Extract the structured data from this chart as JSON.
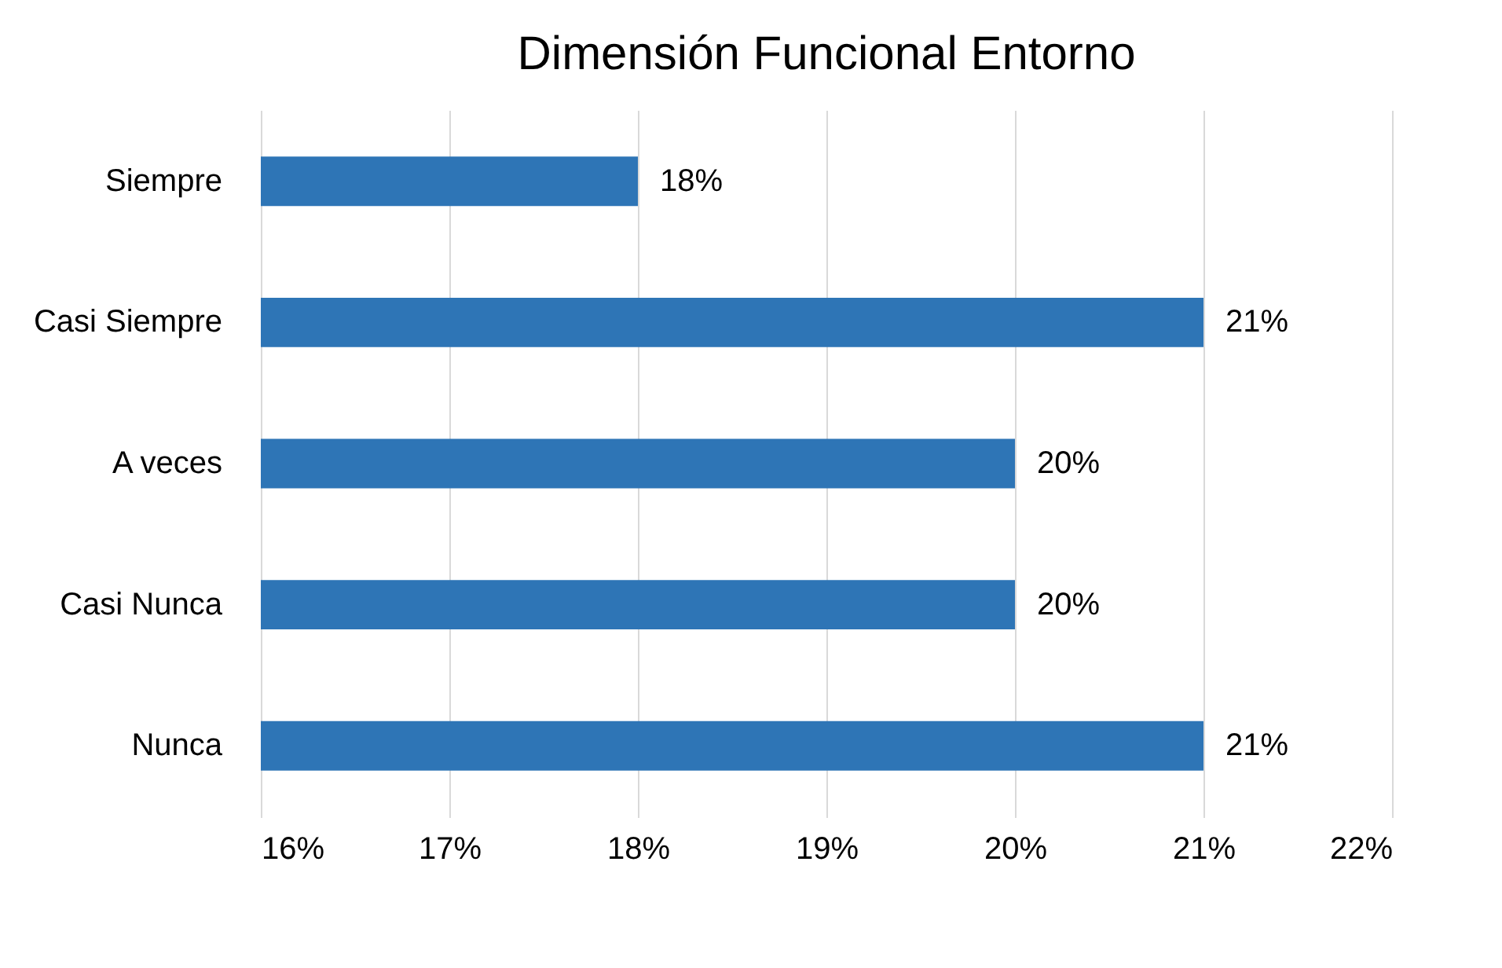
{
  "chart_data": {
    "type": "bar",
    "orientation": "horizontal",
    "title": "Dimensión Funcional Entorno",
    "categories": [
      "Siempre",
      "Casi Siempre",
      "A veces",
      "Casi Nunca",
      "Nunca"
    ],
    "values": [
      18,
      21,
      20,
      20,
      21
    ],
    "value_labels": [
      "18%",
      "21%",
      "20%",
      "20%",
      "21%"
    ],
    "color": "#2e75b6",
    "xlim": [
      16,
      22
    ],
    "xticks": [
      {
        "value": 16,
        "label": "16%"
      },
      {
        "value": 17,
        "label": "17%"
      },
      {
        "value": 18,
        "label": "18%"
      },
      {
        "value": 19,
        "label": "19%"
      },
      {
        "value": 20,
        "label": "20%"
      },
      {
        "value": 21,
        "label": "21%"
      },
      {
        "value": 22,
        "label": "22%"
      }
    ],
    "grid": "x"
  }
}
